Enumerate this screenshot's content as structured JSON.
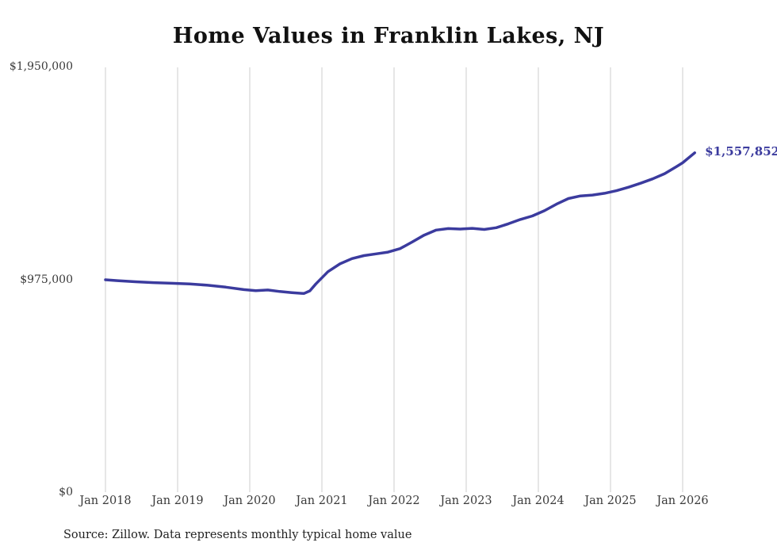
{
  "title": "Home Values in Franklin Lakes, NJ",
  "source_note": "Source: Zillow. Data represents monthly typical home value",
  "colors": {
    "line": "#3b3b9e",
    "gridline": "#cccccc",
    "axis_text": "#3a3a3a",
    "end_label": "#3b3b9e"
  },
  "chart_data": {
    "type": "line",
    "title": "Home Values in Franklin Lakes, NJ",
    "ylabel": "",
    "xlabel": "",
    "ylim": [
      0,
      1950000
    ],
    "y_ticks": [
      "$1,950,000",
      "$975,000",
      "$0"
    ],
    "y_tick_values": [
      1950000,
      975000,
      0
    ],
    "x_ticks": [
      "Jan 2018",
      "Jan 2019",
      "Jan 2020",
      "Jan 2021",
      "Jan 2022",
      "Jan 2023",
      "Jan 2024",
      "Jan 2025",
      "Jan 2026"
    ],
    "grid": "vertical-only",
    "legend": "none",
    "end_label": "$1,557,852",
    "end_value": 1557852,
    "series": [
      {
        "name": "Monthly typical home value",
        "points": [
          {
            "date": "2018-01",
            "value": 975000
          },
          {
            "date": "2018-03",
            "value": 971000
          },
          {
            "date": "2018-06",
            "value": 966000
          },
          {
            "date": "2018-09",
            "value": 962000
          },
          {
            "date": "2018-12",
            "value": 959000
          },
          {
            "date": "2019-03",
            "value": 956000
          },
          {
            "date": "2019-06",
            "value": 950000
          },
          {
            "date": "2019-09",
            "value": 941000
          },
          {
            "date": "2019-12",
            "value": 930000
          },
          {
            "date": "2020-02",
            "value": 925000
          },
          {
            "date": "2020-04",
            "value": 928000
          },
          {
            "date": "2020-06",
            "value": 921000
          },
          {
            "date": "2020-08",
            "value": 916000
          },
          {
            "date": "2020-10",
            "value": 912000
          },
          {
            "date": "2020-11",
            "value": 924000
          },
          {
            "date": "2020-12",
            "value": 956000
          },
          {
            "date": "2021-02",
            "value": 1012000
          },
          {
            "date": "2021-04",
            "value": 1048000
          },
          {
            "date": "2021-06",
            "value": 1072000
          },
          {
            "date": "2021-08",
            "value": 1086000
          },
          {
            "date": "2021-10",
            "value": 1094000
          },
          {
            "date": "2021-12",
            "value": 1102000
          },
          {
            "date": "2022-02",
            "value": 1118000
          },
          {
            "date": "2022-04",
            "value": 1148000
          },
          {
            "date": "2022-06",
            "value": 1180000
          },
          {
            "date": "2022-08",
            "value": 1203000
          },
          {
            "date": "2022-10",
            "value": 1210000
          },
          {
            "date": "2022-12",
            "value": 1208000
          },
          {
            "date": "2023-02",
            "value": 1211000
          },
          {
            "date": "2023-04",
            "value": 1206000
          },
          {
            "date": "2023-06",
            "value": 1214000
          },
          {
            "date": "2023-08",
            "value": 1232000
          },
          {
            "date": "2023-10",
            "value": 1252000
          },
          {
            "date": "2023-12",
            "value": 1268000
          },
          {
            "date": "2024-02",
            "value": 1292000
          },
          {
            "date": "2024-04",
            "value": 1322000
          },
          {
            "date": "2024-06",
            "value": 1348000
          },
          {
            "date": "2024-08",
            "value": 1360000
          },
          {
            "date": "2024-10",
            "value": 1364000
          },
          {
            "date": "2024-12",
            "value": 1372000
          },
          {
            "date": "2025-02",
            "value": 1384000
          },
          {
            "date": "2025-04",
            "value": 1400000
          },
          {
            "date": "2025-06",
            "value": 1418000
          },
          {
            "date": "2025-08",
            "value": 1438000
          },
          {
            "date": "2025-10",
            "value": 1462000
          },
          {
            "date": "2025-12",
            "value": 1495000
          },
          {
            "date": "2026-01",
            "value": 1512000
          },
          {
            "date": "2026-03",
            "value": 1557852
          }
        ]
      }
    ]
  }
}
